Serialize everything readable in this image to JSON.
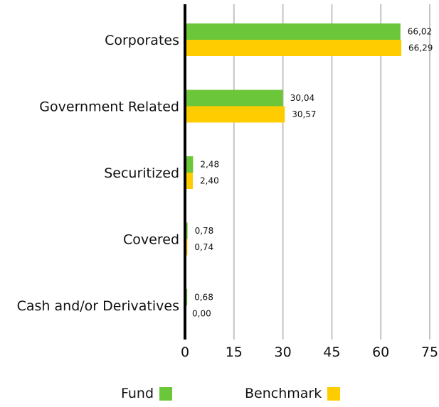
{
  "chart_data": {
    "type": "bar",
    "orientation": "horizontal",
    "categories": [
      "Corporates",
      "Government Related",
      "Securitized",
      "Covered",
      "Cash and/or Derivatives"
    ],
    "series": [
      {
        "name": "Fund",
        "color": "#6cc63a",
        "values": [
          66.02,
          30.04,
          2.48,
          0.78,
          0.68
        ],
        "labels": [
          "66,02",
          "30,04",
          "2,48",
          "0,78",
          "0,68"
        ]
      },
      {
        "name": "Benchmark",
        "color": "#ffcc00",
        "values": [
          66.29,
          30.57,
          2.4,
          0.74,
          0.0
        ],
        "labels": [
          "66,29",
          "30,57",
          "2,40",
          "0,74",
          "0,00"
        ]
      }
    ],
    "x_ticks": [
      0,
      15,
      30,
      45,
      60,
      75
    ],
    "xlim": [
      0,
      75
    ],
    "grid": true,
    "legend_position": "bottom"
  },
  "legend": {
    "fund_label": "Fund",
    "benchmark_label": "Benchmark"
  }
}
